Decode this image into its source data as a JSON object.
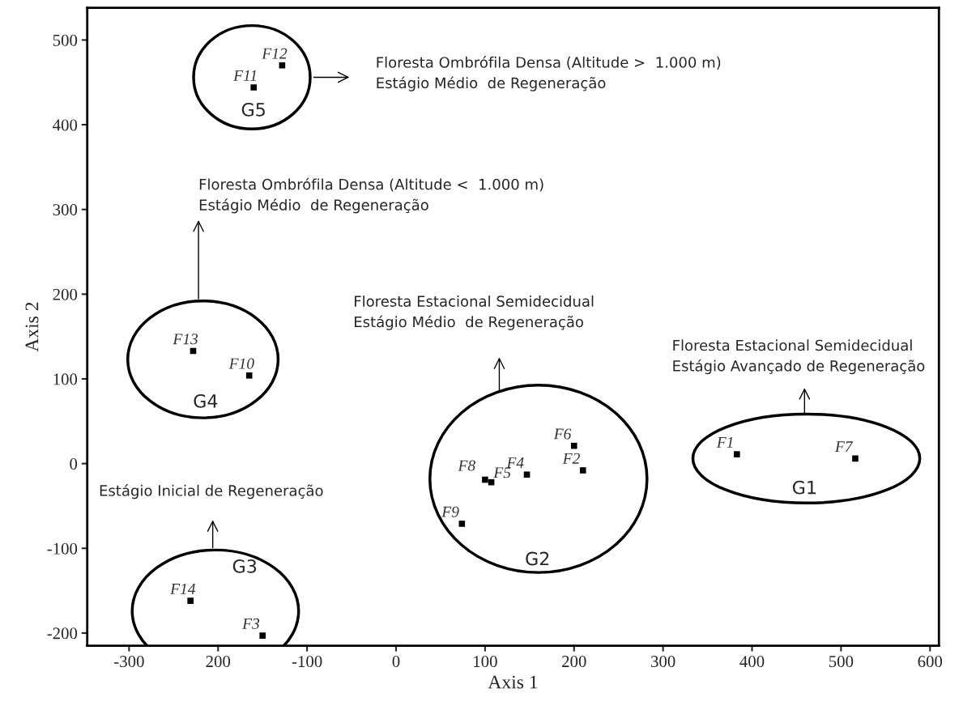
{
  "chart_data": {
    "type": "scatter",
    "xlabel": "Axis 1",
    "ylabel": "Axis 2",
    "x": [
      383,
      210,
      -150,
      147,
      107,
      200,
      516,
      100,
      74,
      -165,
      -160,
      -128,
      -228,
      -231
    ],
    "series": [
      {
        "color": "#000000",
        "values": [
          11,
          -8,
          -203,
          -13,
          -22,
          21,
          6,
          -19,
          -71,
          104,
          444,
          470,
          133,
          -162
        ]
      }
    ],
    "marker": "square",
    "grid": false,
    "legend": false,
    "xlim": [
      -347,
      610
    ],
    "ylim": [
      -215,
      538
    ],
    "xticks": [
      -300,
      {
        "value": -200,
        "label": "200"
      },
      -100,
      0,
      100,
      200,
      300,
      400,
      500,
      600
    ],
    "yticks": [
      -200,
      -100,
      0,
      100,
      200,
      300,
      400,
      500
    ],
    "annotations": [
      {
        "text": "F1",
        "x": 383,
        "y": 11
      },
      {
        "text": "F2",
        "x": 210,
        "y": -8
      },
      {
        "text": "F3",
        "x": -150,
        "y": -203
      },
      {
        "text": "F4",
        "x": 147,
        "y": -13
      },
      {
        "text": "F5",
        "x": 107,
        "y": -22
      },
      {
        "text": "F6",
        "x": 200,
        "y": 21
      },
      {
        "text": "F7",
        "x": 516,
        "y": 6
      },
      {
        "text": "F8",
        "x": 100,
        "y": -19
      },
      {
        "text": "F9",
        "x": 74,
        "y": -71
      },
      {
        "text": "F10",
        "x": -165,
        "y": 104
      },
      {
        "text": "F11",
        "x": -160,
        "y": 444
      },
      {
        "text": "F12",
        "x": -128,
        "y": 470
      },
      {
        "text": "F13",
        "x": -228,
        "y": 133
      },
      {
        "text": "F14",
        "x": -231,
        "y": -162
      },
      "G5",
      "G4",
      "G3",
      "G2",
      "G1",
      "Floresta Ombrófila Densa (Altitude >  1.000 m)\nEstágio Médio  de Regeneração",
      "Floresta Ombrófila Densa (Altitude <  1.000 m)\nEstágio Médio  de Regeneração",
      "Estágio Inicial de Regeneração",
      "Floresta Estacional Semidecidual\nEstágio Médio  de Regeneração",
      "Floresta Estacional Semidecidual\nEstágio Avançado de Regeneração"
    ]
  }
}
